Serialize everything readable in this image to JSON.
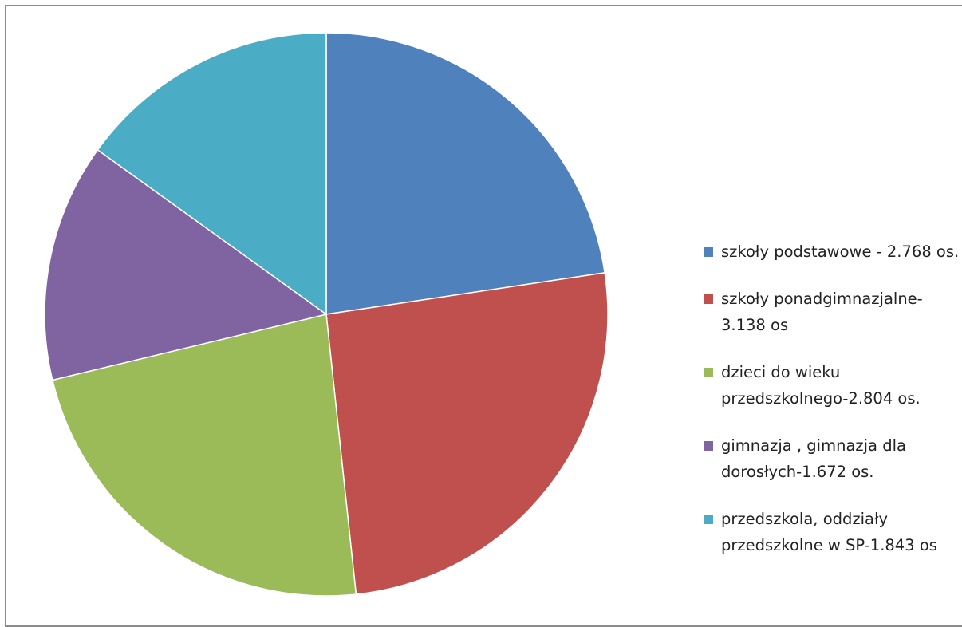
{
  "chart_data": {
    "type": "pie",
    "title": "",
    "start_angle_deg": 0,
    "direction": "clockwise",
    "legend_position": "right",
    "slices": [
      {
        "label": "szkoły podstawowe - 2.768 os.",
        "value": 2768,
        "color": "#4f81bd"
      },
      {
        "label": "szkoły ponadgimnazjalne- 3.138 os",
        "value": 3138,
        "color": "#c0504d"
      },
      {
        "label": "dzieci do wieku przedszkolnego-2.804 os.",
        "value": 2804,
        "color": "#9bbb59"
      },
      {
        "label": "gimnazja , gimnazja dla dorosłych-1.672 os.",
        "value": 1672,
        "color": "#8064a2"
      },
      {
        "label": "przedszkola, oddziały przedszkolne w SP-1.843 os",
        "value": 1843,
        "color": "#4bacc6"
      }
    ]
  }
}
